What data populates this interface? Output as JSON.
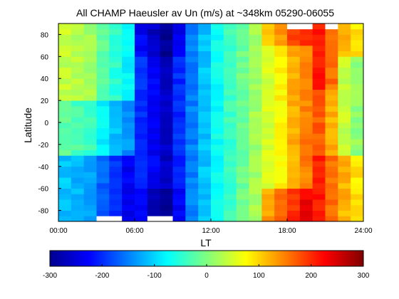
{
  "chart_data": {
    "type": "heatmap",
    "title": "All CHAMP Haeusler av Un (m/s) at ~348km 05290-06055",
    "xlabel": "LT",
    "ylabel": "Latitude",
    "xlim": [
      0,
      24
    ],
    "ylim": [
      -90,
      90
    ],
    "x_ticks": [
      "00:00",
      "06:00",
      "12:00",
      "18:00",
      "24:00"
    ],
    "y_ticks": [
      "-80",
      "-60",
      "-40",
      "-20",
      "0",
      "20",
      "40",
      "60",
      "80"
    ],
    "colorbar": {
      "range": [
        -300,
        300
      ],
      "ticks": [
        "-300",
        "-200",
        "-100",
        "0",
        "100",
        "200",
        "300"
      ],
      "colormap": "jet"
    },
    "grid": false,
    "lt_bin_hours": 1,
    "lat_bin_degrees": 5,
    "lt_profile_at_equator": [
      -20,
      -30,
      -40,
      -80,
      -110,
      -140,
      -200,
      -230,
      -260,
      -200,
      -150,
      -110,
      -70,
      -40,
      -10,
      20,
      50,
      80,
      120,
      150,
      170,
      120,
      40,
      10
    ],
    "notes_visible": "missing data cells near top (18-20 LT and 22-23 LT, lat > 80) and bottom (03-05 LT and 07-09 LT, lat < -85)"
  },
  "colors": {
    "missing": "#ffffff",
    "axes": "#000000"
  }
}
